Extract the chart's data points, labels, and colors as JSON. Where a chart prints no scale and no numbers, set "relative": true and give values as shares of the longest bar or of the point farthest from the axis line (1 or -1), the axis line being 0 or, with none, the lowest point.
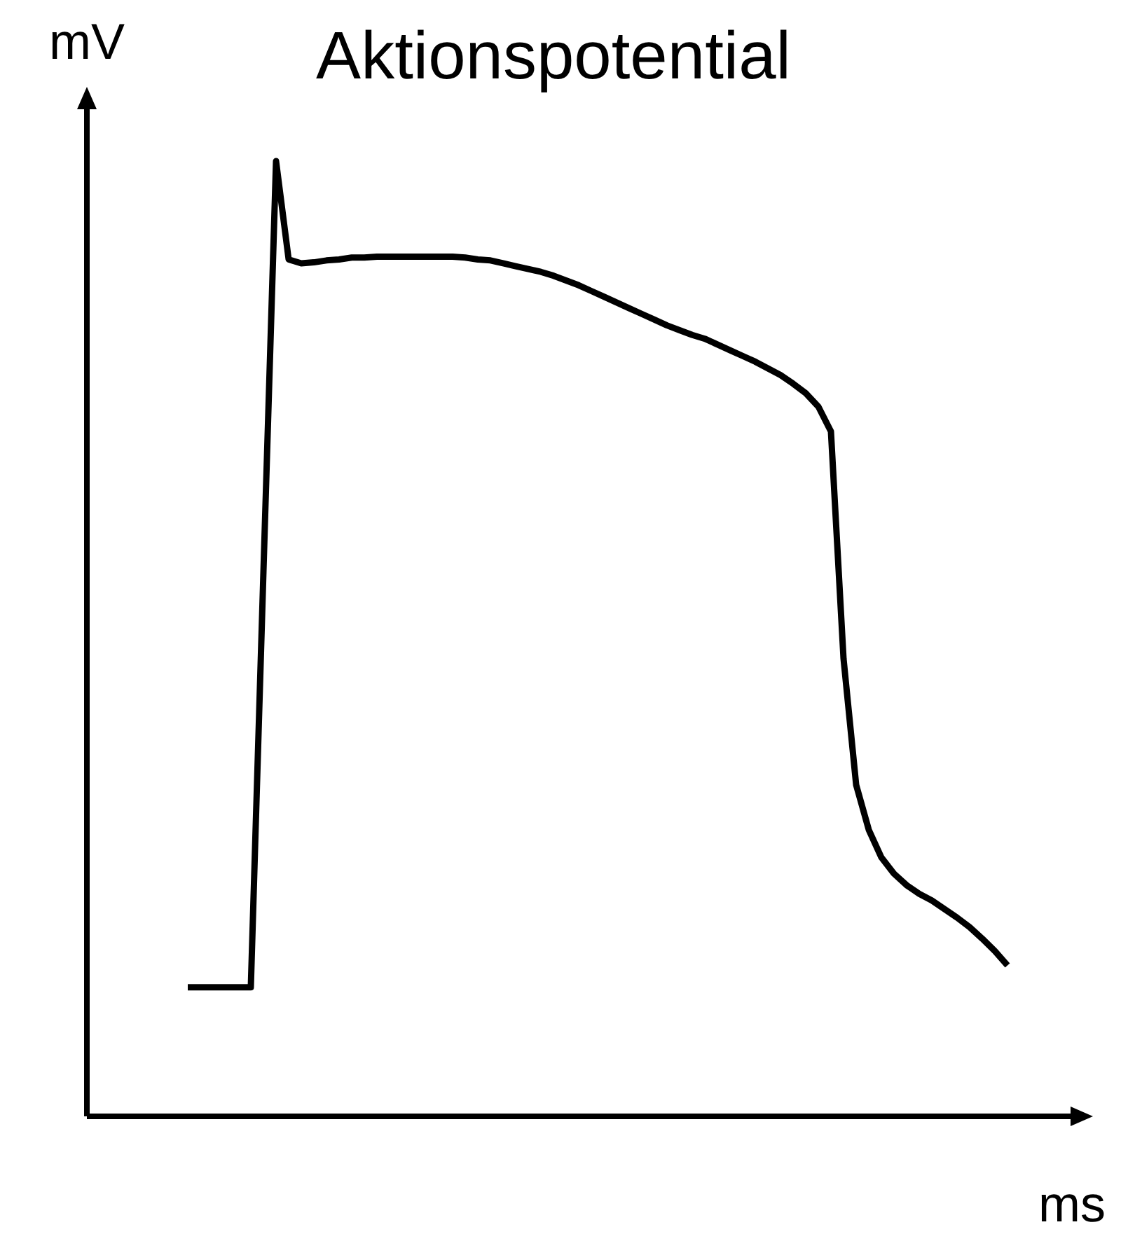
{
  "chart_data": {
    "type": "line",
    "title": "Aktionspotential",
    "xlabel": "ms",
    "ylabel": "mV",
    "relative": true,
    "categories": [
      null,
      null,
      null,
      null,
      null,
      null,
      null,
      null,
      null,
      null,
      null,
      null,
      null,
      null,
      null,
      null,
      null,
      null,
      null,
      null,
      null,
      null,
      null,
      null,
      null,
      null,
      null,
      null,
      null,
      null,
      null,
      null,
      null,
      null,
      null,
      null,
      null,
      null,
      null,
      null,
      null,
      null,
      null,
      null,
      null,
      null,
      null,
      null,
      null,
      null,
      null,
      null,
      null,
      null,
      null,
      null,
      null,
      null,
      null,
      null,
      null,
      null,
      null,
      null,
      null,
      null,
      null,
      null,
      null,
      null,
      null,
      null,
      null,
      null,
      null,
      null,
      null,
      null,
      null,
      null
    ],
    "series": [
      {
        "color": "#000000",
        "values": [
          null,
          null,
          null,
          null,
          null,
          null,
          null,
          null,
          0.135,
          0.135,
          0.135,
          0.135,
          0.135,
          0.135,
          0.57,
          1.0,
          0.897,
          0.893,
          0.894,
          0.896,
          0.897,
          0.899,
          0.899,
          0.9,
          0.9,
          0.9,
          0.9,
          0.9,
          0.9,
          0.9,
          0.899,
          0.897,
          0.896,
          0.893,
          0.89,
          0.887,
          0.884,
          0.88,
          0.875,
          0.87,
          0.864,
          0.858,
          0.852,
          0.846,
          0.84,
          0.834,
          0.828,
          0.823,
          0.818,
          0.814,
          0.808,
          0.802,
          0.796,
          0.79,
          0.783,
          0.776,
          0.767,
          0.757,
          0.743,
          0.717,
          0.479,
          0.347,
          0.3,
          0.271,
          0.254,
          0.242,
          0.233,
          0.226,
          0.217,
          0.208,
          0.198,
          0.186,
          0.173,
          0.158,
          null,
          null,
          null,
          null,
          null,
          null
        ]
      }
    ]
  }
}
